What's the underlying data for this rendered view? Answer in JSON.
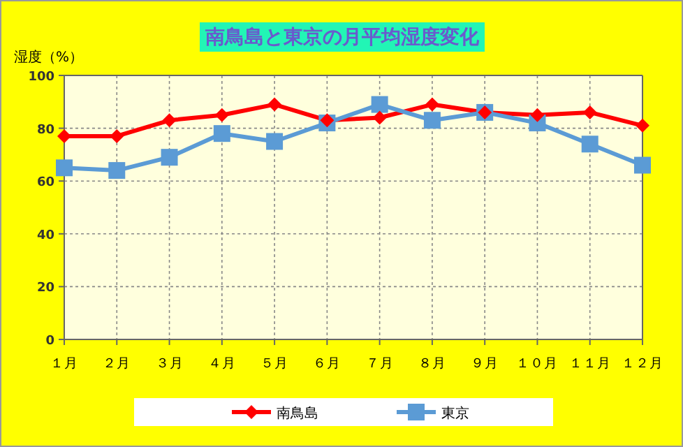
{
  "chart_data": {
    "type": "line",
    "title": "南鳥島と東京の月平均湿度変化",
    "ylabel": "湿度（%）",
    "categories": [
      "１月",
      "２月",
      "３月",
      "４月",
      "５月",
      "６月",
      "７月",
      "８月",
      "９月",
      "１０月",
      "１１月",
      "１２月"
    ],
    "series": [
      {
        "name": "南鳥島",
        "color": "#ff0000",
        "marker": "diamond",
        "values": [
          77,
          77,
          83,
          85,
          89,
          83,
          84,
          89,
          86,
          85,
          86,
          81
        ]
      },
      {
        "name": "東京",
        "color": "#5b9bd5",
        "marker": "square",
        "values": [
          65,
          64,
          69,
          78,
          75,
          82,
          89,
          83,
          86,
          82,
          74,
          66
        ]
      }
    ],
    "ylim": [
      0,
      100
    ],
    "yticks": [
      0,
      20,
      40,
      60,
      80,
      100
    ],
    "grid": true,
    "legend": "bottom"
  }
}
